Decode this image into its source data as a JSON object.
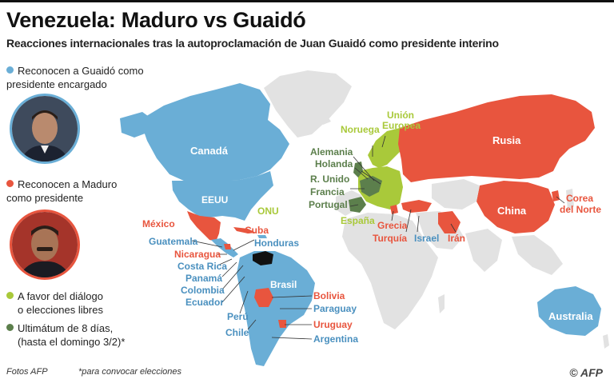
{
  "title": "Venezuela: Maduro vs Guaidó",
  "subtitle": "Reacciones internacionales tras la autoproclamación de Juan Guaidó como presidente interino",
  "colors": {
    "guaido": "#6aaed6",
    "maduro": "#e8553e",
    "dialogo": "#a9c93a",
    "ultimatum": "#5c7f4c",
    "venezuela": "#111111",
    "neutral": "#e2e2e2"
  },
  "legend": {
    "guaido": {
      "line1": "Reconocen a Guaidó como",
      "line2": "presidente encargado"
    },
    "maduro": {
      "line1": "Reconocen a Maduro",
      "line2": "como presidente"
    },
    "dialogo": {
      "line1": "A favor del diálogo",
      "line2": "o elecciones libres"
    },
    "ultimatum": {
      "line1": "Ultimátum de 8 días,",
      "line2": "(hasta el domingo 3/2)*"
    }
  },
  "labels": {
    "canada": "Canadá",
    "eeuu": "EEUU",
    "onu": "ONU",
    "mexico": "México",
    "cuba": "Cuba",
    "guatemala": "Guatemala",
    "honduras": "Honduras",
    "nicaragua": "Nicaragua",
    "costa_rica": "Costa Rica",
    "panama": "Panamá",
    "colombia": "Colombia",
    "ecuador": "Ecuador",
    "peru": "Perú",
    "chile": "Chile",
    "brasil": "Brasil",
    "bolivia": "Bolivia",
    "paraguay": "Paraguay",
    "uruguay": "Uruguay",
    "argentina": "Argentina",
    "noruega": "Noruega",
    "union_europea_1": "Unión",
    "union_europea_2": "Europea",
    "alemania": "Alemania",
    "holanda": "Holanda",
    "r_unido": "R. Unido",
    "francia": "Francia",
    "portugal": "Portugal",
    "espana": "España",
    "grecia": "Grecia",
    "turquia": "Turquía",
    "israel": "Israel",
    "iran": "Irán",
    "rusia": "Rusia",
    "china": "China",
    "corea_1": "Corea",
    "corea_2": "del Norte",
    "australia": "Australia"
  },
  "footer": {
    "photos": "Fotos AFP",
    "footnote": "*para convocar elecciones",
    "copyright": "©",
    "agency": "AFP"
  }
}
